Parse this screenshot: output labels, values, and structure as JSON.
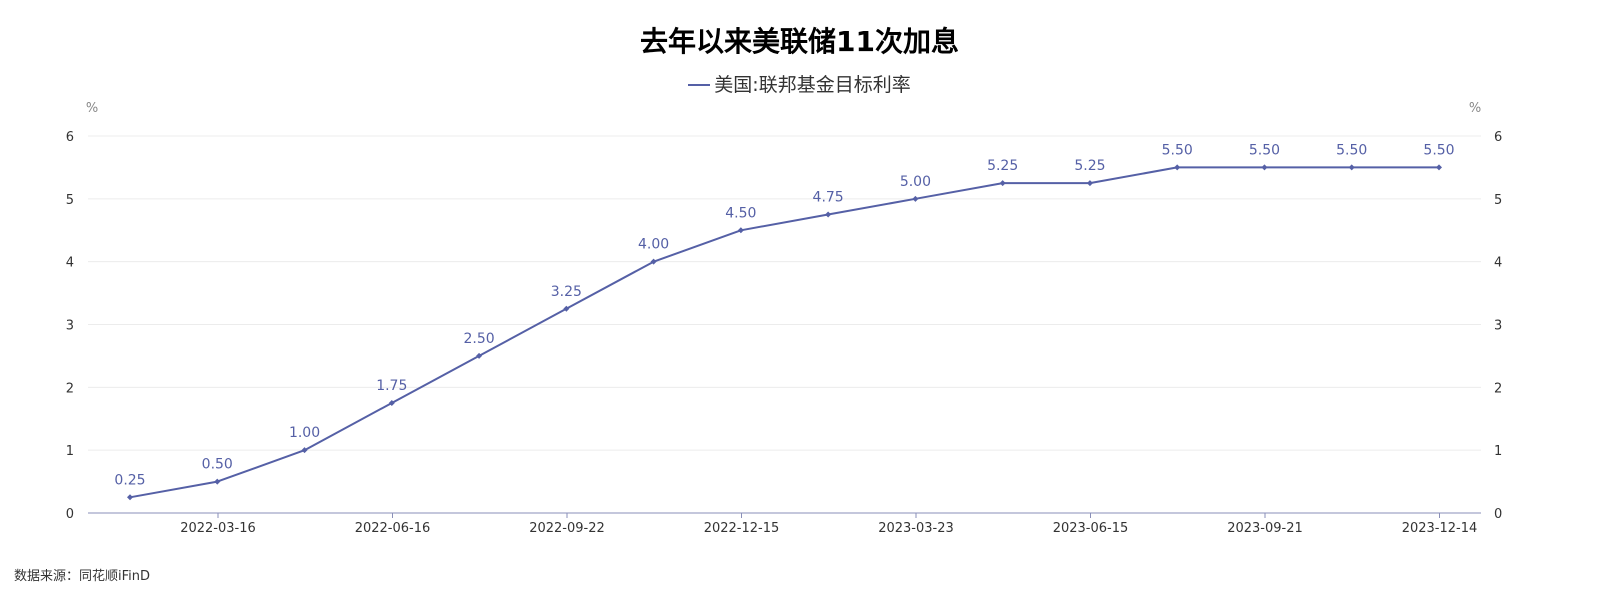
{
  "chart_data": {
    "type": "line",
    "title": "去年以来美联储11次加息",
    "series": [
      {
        "name": "美国:联邦基金目标利率",
        "values": [
          0.25,
          0.5,
          1.0,
          1.75,
          2.5,
          3.25,
          4.0,
          4.5,
          4.75,
          5.0,
          5.25,
          5.25,
          5.5,
          5.5,
          5.5,
          5.5
        ],
        "labels": [
          "0.25",
          "0.50",
          "1.00",
          "1.75",
          "2.50",
          "3.25",
          "4.00",
          "4.50",
          "4.75",
          "5.00",
          "5.25",
          "5.25",
          "5.50",
          "5.50",
          "5.50",
          "5.50"
        ],
        "color": "#5560a6"
      }
    ],
    "x_tick_labels": [
      "2022-03-16",
      "2022-06-16",
      "2022-09-22",
      "2022-12-15",
      "2023-03-23",
      "2023-06-15",
      "2023-09-21",
      "2023-12-14"
    ],
    "y_ticks": [
      "0",
      "1",
      "2",
      "3",
      "4",
      "5",
      "6"
    ],
    "ylim": [
      0,
      6
    ],
    "y_unit_left": "%",
    "y_unit_right": "%",
    "grid": true,
    "legend_position": "top-center",
    "source": "数据来源：同花顺iFinD"
  }
}
